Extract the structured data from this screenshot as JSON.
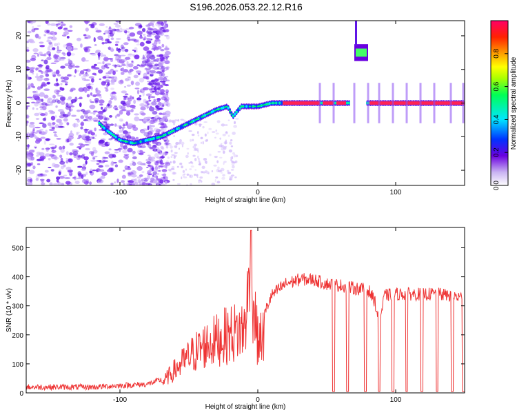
{
  "title": "S196.2026.053.22.12.R16",
  "chart_data": [
    {
      "type": "heatmap",
      "xlabel": "Height of straight line (km)",
      "ylabel": "Frequency (Hz)",
      "xlim": [
        -168,
        150
      ],
      "ylim": [
        -24.5,
        24.5
      ],
      "xticks": [
        -100,
        0,
        100
      ],
      "yticks": [
        -20,
        -10,
        0,
        10,
        20
      ],
      "colorbar": {
        "label": "Normalized spectral amplitude",
        "range": [
          0,
          1
        ],
        "ticks": [
          "0.0",
          "0.2",
          "0.4",
          "0.6",
          "0.8"
        ],
        "tick_values": [
          0,
          0.2,
          0.4,
          0.6,
          0.8
        ]
      },
      "features": [
        {
          "name": "signal trace",
          "points": [
            [
              -115,
              -6
            ],
            [
              -110,
              -8
            ],
            [
              -100,
              -11
            ],
            [
              -90,
              -12
            ],
            [
              -80,
              -11
            ],
            [
              -70,
              -10
            ],
            [
              -60,
              -8
            ],
            [
              -50,
              -6
            ],
            [
              -40,
              -4
            ],
            [
              -30,
              -2
            ],
            [
              -22,
              -1
            ],
            [
              -18,
              -4
            ],
            [
              -12,
              -1
            ],
            [
              -5,
              -1
            ],
            [
              0,
              -1
            ],
            [
              10,
              0
            ],
            [
              20,
              0
            ],
            [
              45,
              0
            ],
            [
              55,
              0
            ],
            [
              65,
              0
            ],
            [
              70,
              0
            ],
            [
              80,
              0
            ],
            [
              150,
              0
            ]
          ]
        },
        {
          "name": "high tone",
          "x_range": [
            70,
            80
          ],
          "frequency": 15
        }
      ]
    },
    {
      "type": "line",
      "xlabel": "Height of straight line (km)",
      "ylabel": "SNR (10 * v/v)",
      "xlim": [
        -168,
        150
      ],
      "ylim": [
        0,
        570
      ],
      "xticks": [
        -100,
        0,
        100
      ],
      "yticks": [
        0,
        100,
        200,
        300,
        400,
        500
      ],
      "color": "#ee3333",
      "envelope": [
        [
          -168,
          20
        ],
        [
          -120,
          20
        ],
        [
          -100,
          25
        ],
        [
          -80,
          30
        ],
        [
          -70,
          45
        ],
        [
          -60,
          110
        ],
        [
          -50,
          170
        ],
        [
          -40,
          220
        ],
        [
          -30,
          250
        ],
        [
          -20,
          280
        ],
        [
          -10,
          300
        ],
        [
          -5,
          560
        ],
        [
          0,
          240
        ],
        [
          5,
          280
        ],
        [
          10,
          340
        ],
        [
          20,
          380
        ],
        [
          30,
          395
        ],
        [
          40,
          395
        ],
        [
          50,
          380
        ],
        [
          60,
          375
        ],
        [
          70,
          365
        ],
        [
          80,
          360
        ],
        [
          85,
          320
        ],
        [
          88,
          240
        ],
        [
          92,
          340
        ],
        [
          100,
          345
        ],
        [
          110,
          345
        ],
        [
          120,
          345
        ],
        [
          130,
          345
        ],
        [
          140,
          340
        ],
        [
          150,
          330
        ]
      ],
      "dropouts": [
        55,
        65,
        78,
        88,
        98,
        108,
        119,
        130,
        141,
        149
      ]
    }
  ]
}
